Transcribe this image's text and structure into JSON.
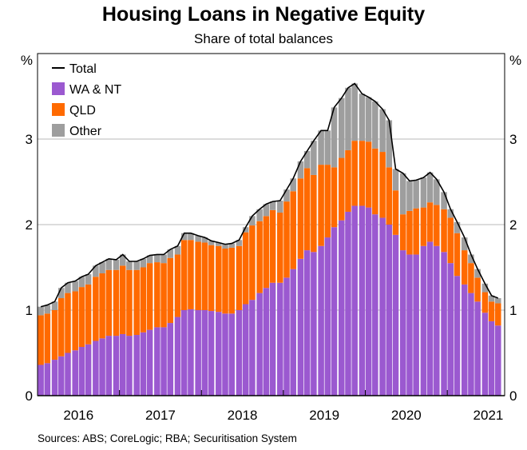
{
  "chart_data": {
    "type": "bar",
    "title": "Housing Loans in Negative Equity",
    "subtitle": "Share of total balances",
    "unit_label_left": "%",
    "unit_label_right": "%",
    "ylim": [
      0,
      4
    ],
    "yticks": [
      "0",
      "1",
      "2",
      "3"
    ],
    "ytick_values": [
      0,
      1,
      2,
      3
    ],
    "xlim": [
      2015.5,
      2021.2
    ],
    "xtick_labels": [
      {
        "label": "2016",
        "center": 2016.0
      },
      {
        "label": "2017",
        "center": 2017.0
      },
      {
        "label": "2018",
        "center": 2018.0
      },
      {
        "label": "2019",
        "center": 2019.0
      },
      {
        "label": "2020",
        "center": 2020.0
      },
      {
        "label": "2021",
        "center": 2021.0
      }
    ],
    "legend": [
      {
        "name": "Total",
        "color": "#000000",
        "kind": "line"
      },
      {
        "name": "WA & NT",
        "color": "#9b59d0",
        "kind": "box"
      },
      {
        "name": "QLD",
        "color": "#ff6a00",
        "kind": "box"
      },
      {
        "name": "Other",
        "color": "#9e9e9e",
        "kind": "box"
      }
    ],
    "x": [
      2015.54,
      2015.62,
      2015.71,
      2015.79,
      2015.87,
      2015.96,
      2016.04,
      2016.12,
      2016.21,
      2016.29,
      2016.37,
      2016.46,
      2016.54,
      2016.62,
      2016.71,
      2016.79,
      2016.87,
      2016.96,
      2017.04,
      2017.12,
      2017.21,
      2017.29,
      2017.37,
      2017.46,
      2017.54,
      2017.62,
      2017.71,
      2017.79,
      2017.87,
      2017.96,
      2018.04,
      2018.12,
      2018.21,
      2018.29,
      2018.37,
      2018.46,
      2018.54,
      2018.62,
      2018.71,
      2018.79,
      2018.87,
      2018.96,
      2019.04,
      2019.12,
      2019.21,
      2019.29,
      2019.37,
      2019.46,
      2019.54,
      2019.62,
      2019.71,
      2019.79,
      2019.87,
      2019.96,
      2020.04,
      2020.12,
      2020.21,
      2020.29,
      2020.37,
      2020.46,
      2020.54,
      2020.62,
      2020.71,
      2020.79,
      2020.87,
      2020.96,
      2021.04,
      2021.12
    ],
    "series": [
      {
        "name": "WA & NT",
        "color": "#9b59d0",
        "values": [
          0.36,
          0.38,
          0.42,
          0.46,
          0.5,
          0.53,
          0.57,
          0.6,
          0.64,
          0.67,
          0.7,
          0.7,
          0.72,
          0.7,
          0.71,
          0.74,
          0.77,
          0.8,
          0.8,
          0.85,
          0.92,
          1.0,
          1.01,
          1.0,
          1.0,
          0.99,
          0.98,
          0.96,
          0.96,
          1.0,
          1.07,
          1.12,
          1.2,
          1.26,
          1.32,
          1.32,
          1.38,
          1.48,
          1.6,
          1.7,
          1.68,
          1.75,
          1.85,
          1.97,
          2.05,
          2.15,
          2.22,
          2.22,
          2.2,
          2.12,
          2.08,
          2.0,
          1.88,
          1.7,
          1.65,
          1.65,
          1.75,
          1.8,
          1.75,
          1.68,
          1.55,
          1.4,
          1.3,
          1.2,
          1.1,
          0.97,
          0.87,
          0.82
        ]
      },
      {
        "name": "QLD",
        "color": "#ff6a00",
        "values": [
          0.58,
          0.58,
          0.58,
          0.68,
          0.7,
          0.69,
          0.7,
          0.7,
          0.75,
          0.76,
          0.77,
          0.77,
          0.8,
          0.77,
          0.76,
          0.76,
          0.78,
          0.76,
          0.75,
          0.76,
          0.73,
          0.82,
          0.81,
          0.8,
          0.79,
          0.77,
          0.77,
          0.76,
          0.77,
          0.75,
          0.84,
          0.87,
          0.84,
          0.84,
          0.85,
          0.82,
          0.89,
          0.91,
          0.94,
          0.96,
          0.9,
          0.95,
          0.85,
          0.7,
          0.73,
          0.72,
          0.76,
          0.76,
          0.77,
          0.77,
          0.77,
          0.67,
          0.52,
          0.42,
          0.51,
          0.54,
          0.45,
          0.46,
          0.48,
          0.5,
          0.53,
          0.5,
          0.4,
          0.35,
          0.28,
          0.24,
          0.23,
          0.26
        ]
      },
      {
        "name": "Other",
        "color": "#9e9e9e",
        "values": [
          0.1,
          0.1,
          0.1,
          0.12,
          0.12,
          0.12,
          0.12,
          0.12,
          0.13,
          0.13,
          0.13,
          0.12,
          0.13,
          0.1,
          0.1,
          0.1,
          0.09,
          0.09,
          0.1,
          0.1,
          0.1,
          0.08,
          0.08,
          0.07,
          0.06,
          0.05,
          0.04,
          0.05,
          0.05,
          0.07,
          0.06,
          0.11,
          0.14,
          0.14,
          0.1,
          0.14,
          0.14,
          0.15,
          0.2,
          0.2,
          0.4,
          0.4,
          0.4,
          0.7,
          0.7,
          0.73,
          0.67,
          0.55,
          0.52,
          0.55,
          0.5,
          0.55,
          0.25,
          0.48,
          0.35,
          0.33,
          0.35,
          0.35,
          0.3,
          0.2,
          0.1,
          0.13,
          0.15,
          0.1,
          0.1,
          0.1,
          0.07,
          0.06
        ]
      },
      {
        "name": "Total",
        "color": "#000000",
        "kind": "line",
        "values": [
          1.04,
          1.06,
          1.1,
          1.26,
          1.32,
          1.34,
          1.39,
          1.42,
          1.52,
          1.56,
          1.6,
          1.59,
          1.65,
          1.57,
          1.57,
          1.6,
          1.64,
          1.65,
          1.65,
          1.71,
          1.75,
          1.9,
          1.9,
          1.87,
          1.85,
          1.81,
          1.79,
          1.77,
          1.78,
          1.82,
          1.97,
          2.1,
          2.18,
          2.24,
          2.27,
          2.28,
          2.41,
          2.54,
          2.74,
          2.86,
          2.98,
          3.1,
          3.1,
          3.37,
          3.48,
          3.6,
          3.65,
          3.53,
          3.49,
          3.44,
          3.35,
          3.22,
          2.65,
          2.6,
          2.51,
          2.52,
          2.55,
          2.61,
          2.53,
          2.38,
          2.18,
          2.03,
          1.85,
          1.65,
          1.48,
          1.31,
          1.17,
          1.14
        ]
      }
    ]
  },
  "source_text": "Sources: ABS; CoreLogic; RBA; Securitisation System"
}
